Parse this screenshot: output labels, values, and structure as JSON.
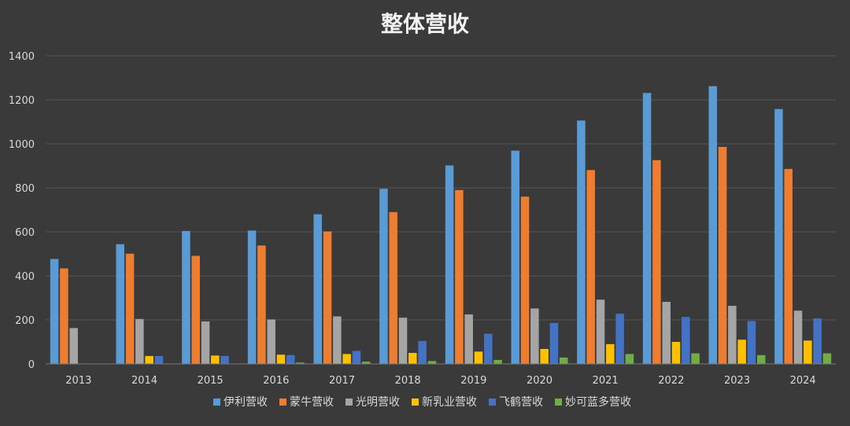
{
  "chart_data": {
    "type": "bar",
    "title": "整体营收",
    "xlabel": "",
    "ylabel": "",
    "ylim": [
      0,
      1400
    ],
    "yticks": [
      0,
      200,
      400,
      600,
      800,
      1000,
      1200,
      1400
    ],
    "grid": true,
    "legend_position": "bottom",
    "categories": [
      "2013",
      "2014",
      "2015",
      "2016",
      "2017",
      "2018",
      "2019",
      "2020",
      "2021",
      "2022",
      "2023",
      "2024"
    ],
    "series": [
      {
        "name": "伊利营收",
        "color": "#5b9bd5",
        "values": [
          477,
          544,
          604,
          606,
          680,
          796,
          902,
          969,
          1106,
          1231,
          1262,
          1158
        ]
      },
      {
        "name": "蒙牛营收",
        "color": "#ed7d31",
        "values": [
          434,
          501,
          491,
          538,
          602,
          690,
          790,
          760,
          881,
          926,
          986,
          886
        ]
      },
      {
        "name": "光明营收",
        "color": "#a5a5a5",
        "values": [
          163,
          204,
          193,
          202,
          216,
          210,
          225,
          252,
          292,
          282,
          264,
          242
        ]
      },
      {
        "name": "新乳业营收",
        "color": "#ffc000",
        "values": [
          0,
          36,
          38,
          42,
          45,
          50,
          56,
          68,
          90,
          100,
          110,
          106
        ]
      },
      {
        "name": "飞鹤营收",
        "color": "#4472c4",
        "values": [
          0,
          36,
          36,
          40,
          59,
          104,
          137,
          186,
          228,
          213,
          195,
          207
        ]
      },
      {
        "name": "妙可蓝多营收",
        "color": "#70ad47",
        "values": [
          0,
          0,
          0,
          6,
          10,
          13,
          18,
          29,
          45,
          48,
          40,
          48
        ]
      }
    ]
  }
}
